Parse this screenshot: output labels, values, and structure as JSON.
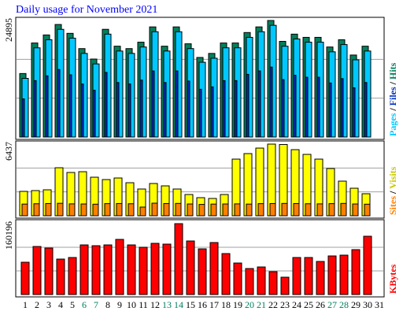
{
  "chart_data": [
    {
      "type": "bar",
      "title": "Daily usage for November 2021",
      "ylim": [
        0,
        24895
      ],
      "yticks": [
        24895
      ],
      "legend_separator": " / ",
      "series": [
        {
          "name": "Pages",
          "color": "#00c8ff",
          "values": [
            12530,
            19050,
            20780,
            23000,
            21120,
            17860,
            15620,
            21980,
            18370,
            17860,
            19230,
            22490,
            18370,
            22490,
            18890,
            15970,
            16830,
            19060,
            19060,
            21290,
            22490,
            23860,
            19400,
            20950,
            20260,
            20260,
            18200,
            19750,
            16490,
            18370,
            null
          ]
        },
        {
          "name": "Files",
          "color": "#0030c0",
          "values": [
            8140,
            12050,
            13080,
            14420,
            13290,
            11330,
            9990,
            13800,
            11640,
            11330,
            12160,
            14110,
            11640,
            14110,
            11950,
            10200,
            10710,
            12050,
            12050,
            13390,
            14110,
            14940,
            12260,
            13190,
            12770,
            12770,
            11540,
            12470,
            10510,
            11640,
            null
          ]
        },
        {
          "name": "Hits",
          "color": "#00805c",
          "values": [
            13564,
            20088,
            21805,
            24037,
            22148,
            18886,
            16654,
            23007,
            19401,
            18886,
            20260,
            23522,
            19401,
            23522,
            19916,
            16997,
            17856,
            20088,
            20088,
            22320,
            23522,
            24895,
            20432,
            21977,
            21290,
            21290,
            19230,
            20775,
            17513,
            19401,
            null
          ]
        }
      ]
    },
    {
      "type": "bar",
      "ylim": [
        0,
        6437
      ],
      "yticks": [
        6437
      ],
      "legend_separator": " / ",
      "series": [
        {
          "name": "Sites",
          "color": "#ff8000",
          "label_color": "#ff8000",
          "values": [
            1050,
            1080,
            1100,
            1120,
            1070,
            1060,
            1040,
            1090,
            1100,
            1080,
            780,
            1130,
            1100,
            1110,
            1060,
            1020,
            1050,
            1060,
            1070,
            1050,
            1090,
            1100,
            1110,
            1100,
            1080,
            1070,
            1090,
            1110,
            1060,
            1040,
            null
          ]
        },
        {
          "name": "Visits",
          "color": "#ffff00",
          "label_color": "#c8c800",
          "values": [
            2192,
            2263,
            2333,
            4313,
            3889,
            3959,
            3464,
            3252,
            3394,
            2969,
            2404,
            2899,
            2687,
            2404,
            1909,
            1626,
            1555,
            1909,
            5090,
            5585,
            6080,
            6437,
            6400,
            5939,
            5515,
            5090,
            4242,
            3111,
            2474,
            1980,
            null
          ]
        }
      ]
    },
    {
      "type": "bar",
      "ylim": [
        0,
        160196
      ],
      "yticks": [
        160196
      ],
      "categories": [
        "1",
        "2",
        "3",
        "4",
        "5",
        "6",
        "7",
        "8",
        "9",
        "10",
        "11",
        "12",
        "13",
        "14",
        "15",
        "16",
        "17",
        "18",
        "19",
        "20",
        "21",
        "22",
        "23",
        "24",
        "25",
        "26",
        "27",
        "28",
        "29",
        "30",
        "31"
      ],
      "category_colors": [
        "#000000",
        "#000000",
        "#000000",
        "#000000",
        "#000000",
        "#00805c",
        "#00805c",
        "#000000",
        "#000000",
        "#000000",
        "#000000",
        "#000000",
        "#00805c",
        "#00805c",
        "#000000",
        "#000000",
        "#000000",
        "#000000",
        "#000000",
        "#00805c",
        "#00805c",
        "#000000",
        "#000000",
        "#000000",
        "#000000",
        "#000000",
        "#00805c",
        "#00805c",
        "#000000",
        "#000000",
        "#000000"
      ],
      "series": [
        {
          "name": "KBytes",
          "color": "#ff0000",
          "values": [
            72980,
            108580,
            105020,
            80100,
            83660,
            112140,
            110360,
            112140,
            124600,
            112140,
            106800,
            115700,
            113920,
            160196,
            121040,
            103240,
            117480,
            92560,
            71200,
            58740,
            62300,
            51620,
            39160,
            83660,
            83660,
            74760,
            87220,
            89000,
            101460,
            131720,
            null
          ]
        }
      ]
    }
  ]
}
